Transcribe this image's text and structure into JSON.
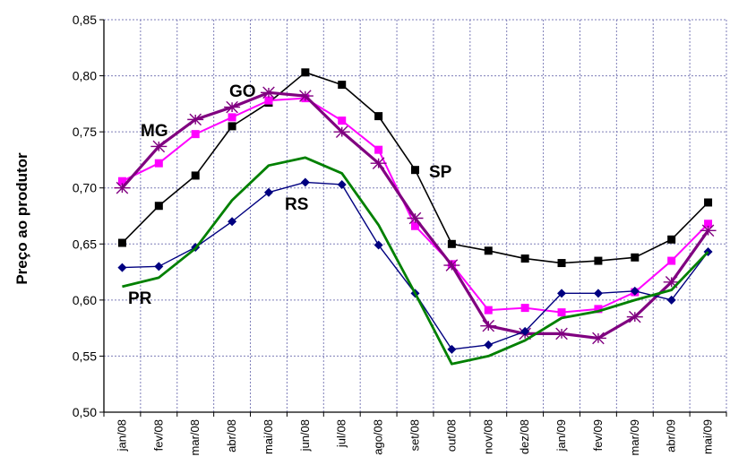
{
  "chart_data": {
    "type": "line",
    "ylabel": "Preço ao produtor",
    "xlabel": "",
    "ylim": [
      0.5,
      0.85
    ],
    "yticks": [
      "0,50",
      "0,55",
      "0,60",
      "0,65",
      "0,70",
      "0,75",
      "0,80",
      "0,85"
    ],
    "categories": [
      "jan/08",
      "fev/08",
      "mar/08",
      "abr/08",
      "mai/08",
      "jun/08",
      "jul/08",
      "ago/08",
      "set/08",
      "out/08",
      "nov/08",
      "dez/08",
      "jan/09",
      "fev/09",
      "mar/09",
      "abr/09",
      "mai/09"
    ],
    "grid": true,
    "series": [
      {
        "name": "SP",
        "color": "#000000",
        "marker": "square",
        "values": [
          0.651,
          0.684,
          0.711,
          0.755,
          0.776,
          0.803,
          0.792,
          0.764,
          0.716,
          0.65,
          0.644,
          0.637,
          0.633,
          0.635,
          0.638,
          0.654,
          0.687
        ]
      },
      {
        "name": "MG",
        "color": "#ff00ff",
        "marker": "square",
        "values": [
          0.706,
          0.722,
          0.748,
          0.763,
          0.778,
          0.78,
          0.76,
          0.734,
          0.666,
          0.632,
          0.591,
          0.593,
          0.589,
          0.592,
          0.607,
          0.635,
          0.668
        ]
      },
      {
        "name": "GO",
        "color": "#800080",
        "marker": "star",
        "values": [
          0.7,
          0.737,
          0.761,
          0.772,
          0.785,
          0.782,
          0.75,
          0.722,
          0.673,
          0.631,
          0.577,
          0.57,
          0.57,
          0.566,
          0.585,
          0.616,
          0.662
        ]
      },
      {
        "name": "RS",
        "color": "#000080",
        "marker": "diamond",
        "values": [
          0.629,
          0.63,
          0.647,
          0.67,
          0.696,
          0.705,
          0.703,
          0.649,
          0.606,
          0.556,
          0.56,
          0.572,
          0.606,
          0.606,
          0.608,
          0.6,
          0.643
        ]
      },
      {
        "name": "PR",
        "color": "#008000",
        "marker": "none",
        "values": [
          0.612,
          0.62,
          0.646,
          0.689,
          0.72,
          0.727,
          0.713,
          0.667,
          0.606,
          0.543,
          0.55,
          0.564,
          0.584,
          0.59,
          0.6,
          0.609,
          0.643
        ]
      }
    ],
    "labels": [
      "SP",
      "MG",
      "GO",
      "RS",
      "PR"
    ]
  }
}
